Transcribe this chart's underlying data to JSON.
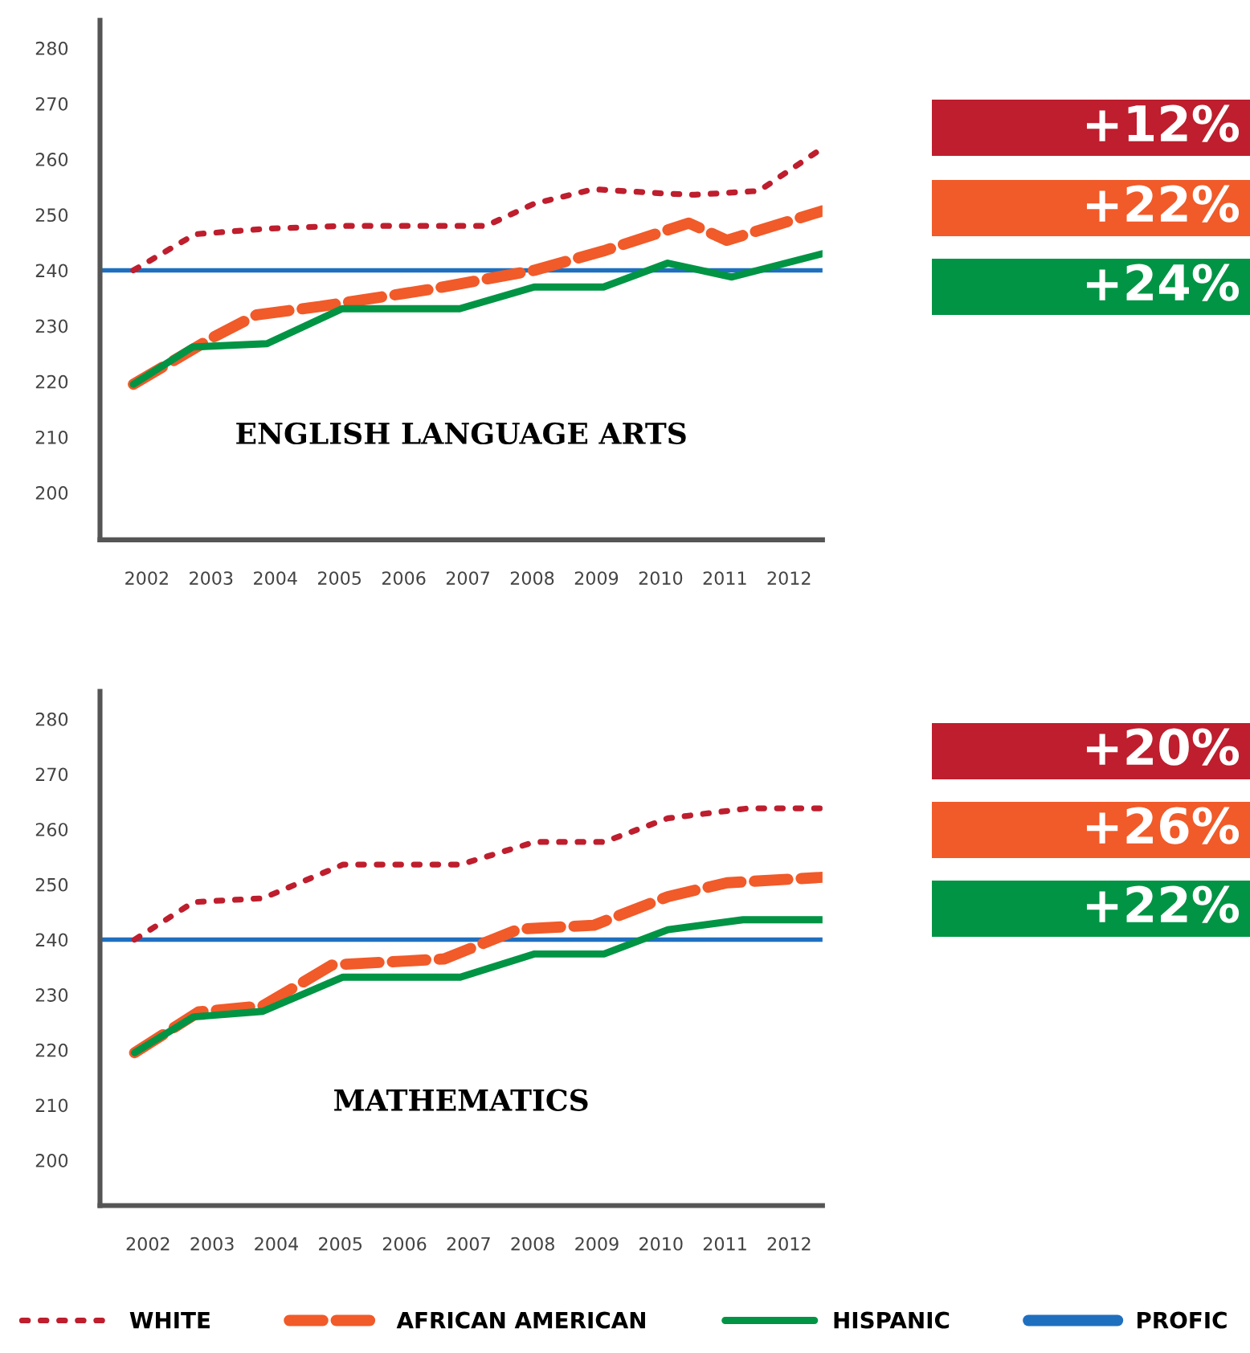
{
  "chart_data": [
    {
      "type": "line",
      "title": "ENGLISH LANGUAGE ARTS",
      "xlim": [
        2001.27,
        2012.52
      ],
      "xticks": [
        2002,
        2003,
        2004,
        2005,
        2006,
        2007,
        2008,
        2009,
        2010,
        2011,
        2012
      ],
      "ylim": [
        191.5,
        285
      ],
      "yticks": [
        200,
        210,
        220,
        230,
        240,
        250,
        260,
        270,
        280
      ],
      "grid": false,
      "legend": "bottom",
      "annotations": [
        "+12%",
        "+22%",
        "+24%"
      ],
      "ref_lines": [
        {
          "axis": "y",
          "value": 240,
          "color": "#1f6fbf",
          "label": "PROFIC"
        }
      ],
      "series": [
        {
          "name": "WHITE",
          "color": "#be1e2d",
          "line_style": "dotted",
          "x": [
            2001.79,
            2002.75,
            2003.87,
            2005.04,
            2007.28,
            2008.03,
            2008.95,
            2010.11,
            2010.53,
            2011.53,
            2012.52
          ],
          "values": [
            240,
            246.5,
            247.5,
            248,
            248,
            252,
            254.6,
            253.8,
            253.6,
            254.3,
            262
          ]
        },
        {
          "name": "AFRICAN AMERICAN",
          "color": "#f15a29",
          "line_style": "dashed",
          "x": [
            2001.79,
            2003.04,
            2003.71,
            2004.7,
            2006.37,
            2008.03,
            2009.11,
            2010.44,
            2011.03,
            2012.52
          ],
          "values": [
            219.5,
            228,
            232,
            233.5,
            236.5,
            240,
            243.5,
            248.5,
            245.4,
            250.7
          ]
        },
        {
          "name": "HISPANIC",
          "color": "#009444",
          "line_style": "solid",
          "x": [
            2001.79,
            2002.71,
            2003.87,
            2005.04,
            2006.87,
            2008.03,
            2009.11,
            2010.11,
            2011.11,
            2012.52
          ],
          "values": [
            219.5,
            226.2,
            226.8,
            233.1,
            233.1,
            237,
            237,
            241.3,
            238.8,
            243
          ]
        }
      ]
    },
    {
      "type": "line",
      "title": "MATHEMATICS",
      "xlim": [
        2001.25,
        2012.52
      ],
      "xticks": [
        2002,
        2003,
        2004,
        2005,
        2006,
        2007,
        2008,
        2009,
        2010,
        2011,
        2012
      ],
      "ylim": [
        191.8,
        285
      ],
      "yticks": [
        200,
        210,
        220,
        230,
        240,
        250,
        260,
        270,
        280
      ],
      "grid": false,
      "annotations": [
        "+20%",
        "+26%",
        "+22%"
      ],
      "ref_lines": [
        {
          "axis": "y",
          "value": 240,
          "color": "#1f6fbf"
        }
      ],
      "series": [
        {
          "color": "#be1e2d",
          "line_style": "dotted",
          "x": [
            2001.79,
            2002.71,
            2003.79,
            2005.04,
            2006.87,
            2008.03,
            2009.11,
            2010.11,
            2011.36,
            2012.52
          ],
          "values": [
            240,
            246.8,
            247.5,
            253.6,
            253.6,
            257.7,
            257.7,
            262,
            263.8,
            263.8
          ]
        },
        {
          "color": "#f15a29",
          "line_style": "dashed",
          "x": [
            2001.79,
            2002.79,
            2003.79,
            2004.87,
            2006.62,
            2007.78,
            2008.95,
            2010.11,
            2011.03,
            2012.52
          ],
          "values": [
            219.5,
            226.9,
            228,
            235.4,
            236.5,
            241.9,
            242.6,
            247.8,
            250.3,
            251.3
          ]
        },
        {
          "color": "#009444",
          "line_style": "solid",
          "x": [
            2001.79,
            2002.71,
            2003.79,
            2005.04,
            2006.87,
            2008.03,
            2009.11,
            2010.11,
            2011.28,
            2012.52
          ],
          "values": [
            219.5,
            226,
            227,
            233.2,
            233.2,
            237.4,
            237.4,
            241.8,
            243.6,
            243.6
          ]
        }
      ]
    }
  ]
}
